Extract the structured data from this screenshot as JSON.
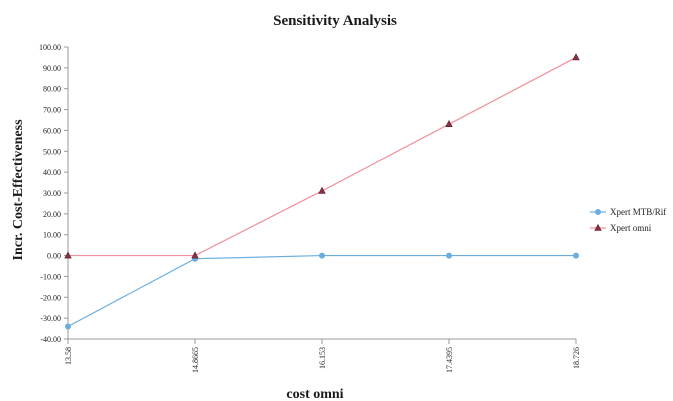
{
  "chart_data": {
    "type": "line",
    "title": "Sensitivity Analysis",
    "xlabel": "cost omni",
    "ylabel": "Incr. Cost-Effectiveness",
    "categories": [
      "13.58",
      "14.8665",
      "16.153",
      "17.4395",
      "18.726"
    ],
    "ylim": [
      -40,
      100
    ],
    "yticks": [
      "100.00",
      "90.00",
      "80.00",
      "70.00",
      "60.00",
      "50.00",
      "40.00",
      "30.00",
      "20.00",
      "10.00",
      "0.00",
      "-10.00",
      "-20.00",
      "-30.00",
      "-40.00"
    ],
    "grid": false,
    "legend_position": "right",
    "series": [
      {
        "name": "Xpert MTB/Rif",
        "color": "#6aaee0",
        "marker": "circle",
        "values": [
          -34,
          -1.5,
          0,
          0,
          0
        ]
      },
      {
        "name": "Xpert omni",
        "color": "#f0909a",
        "marker": "triangle",
        "values": [
          0,
          0,
          31,
          63,
          95
        ]
      }
    ]
  }
}
